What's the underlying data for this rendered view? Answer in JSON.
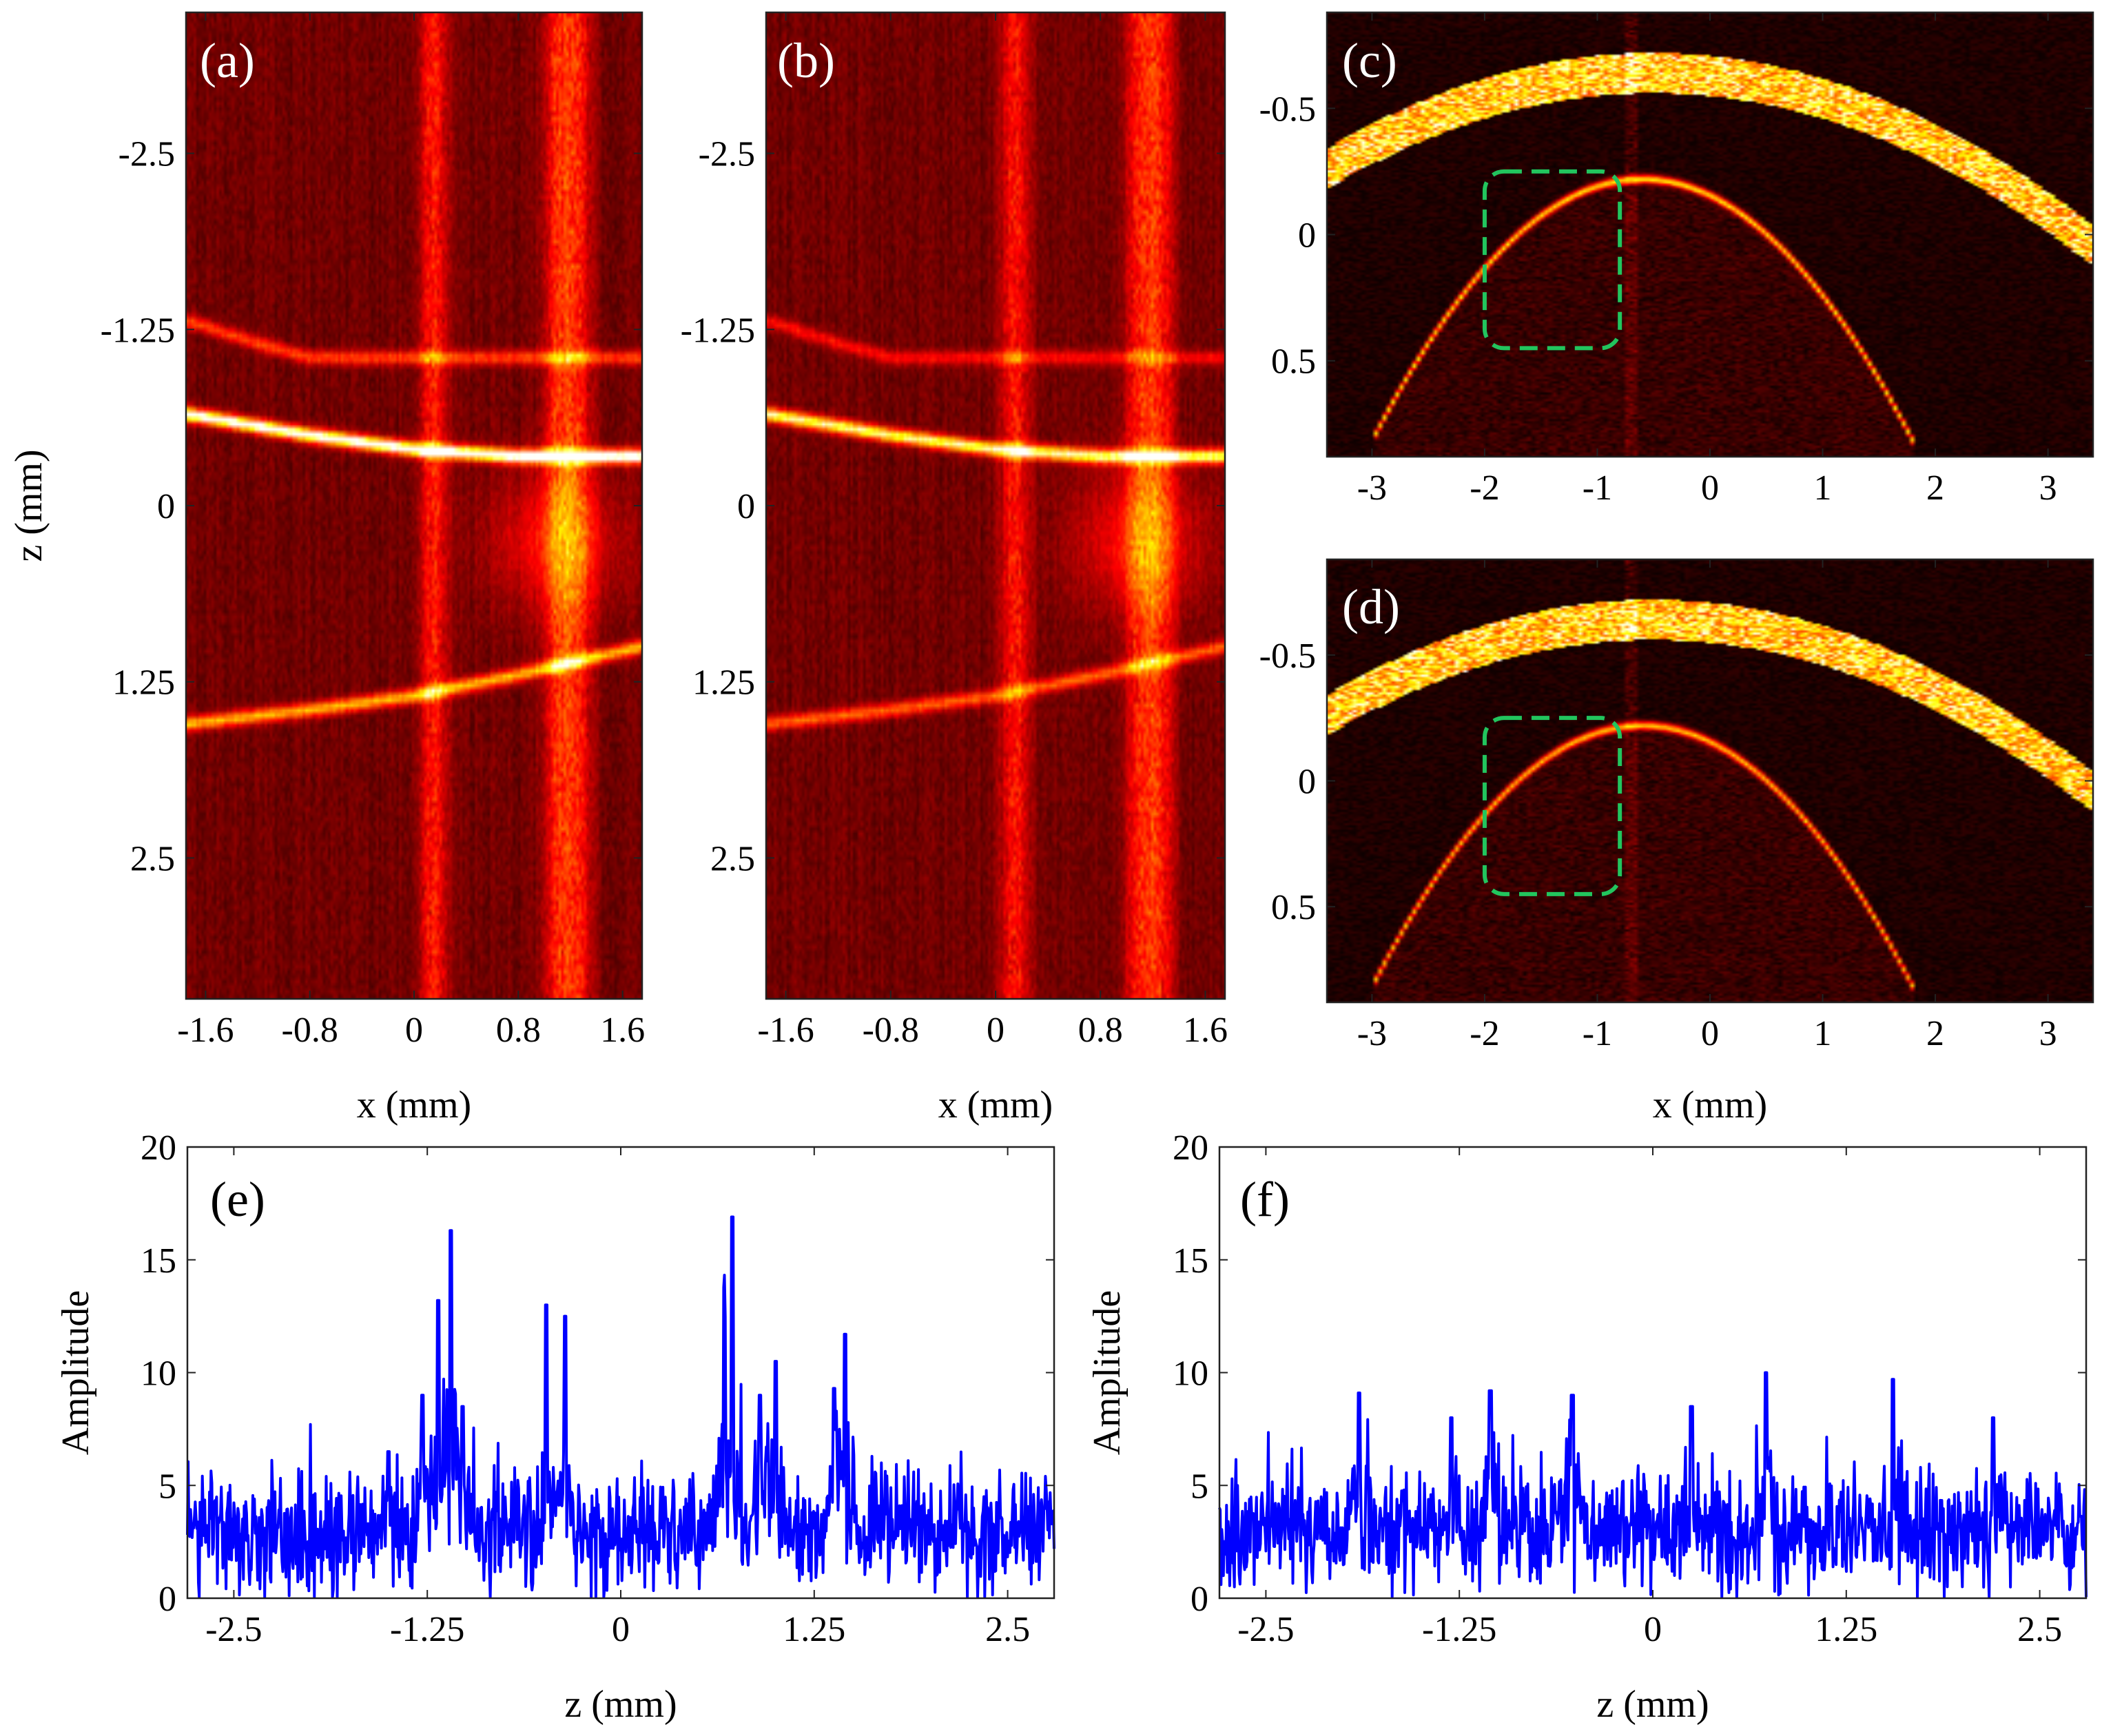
{
  "figure": {
    "panels": {
      "a": {
        "label": "(a)"
      },
      "b": {
        "label": "(b)"
      },
      "c": {
        "label": "(c)"
      },
      "d": {
        "label": "(d)"
      },
      "e": {
        "label": "(e)"
      },
      "f": {
        "label": "(f)"
      }
    },
    "colors": {
      "line": "#0000ff",
      "roi_box": "#22c55e",
      "image_dark": "#150000",
      "image_mid": "#8b1a00",
      "image_bright": "#ffe8a0"
    }
  },
  "chart_data": [
    {
      "type": "heatmap",
      "panel": "(a)",
      "colormap": "hot",
      "xlabel": "x (mm)",
      "ylabel": "z (mm)",
      "xlim": [
        -1.75,
        1.75
      ],
      "ylim": [
        -3.5,
        3.5
      ],
      "y_reversed": true,
      "xticks": [
        -1.6,
        -0.8,
        0,
        0.8,
        1.6
      ],
      "xtick_labels": [
        "-1.6",
        "-0.8",
        "0",
        "0.8",
        "1.6"
      ],
      "yticks": [
        -2.5,
        -1.25,
        0,
        1.25,
        2.5
      ],
      "ytick_labels": [
        "-2.5",
        "-1.25",
        "0",
        "1.25",
        "2.5"
      ],
      "features": {
        "bright_columns_x_mm": [
          0.15,
          1.1,
          1.25
        ],
        "surface_arcs": [
          {
            "x": [
              -1.75,
              -0.8,
              0,
              0.8,
              1.6,
              1.75
            ],
            "z": [
              -0.65,
              -0.5,
              -0.4,
              -0.35,
              -0.35,
              -0.35
            ],
            "intensity": 0.9
          },
          {
            "x": [
              -1.75,
              -0.8,
              0,
              0.8,
              1.75
            ],
            "z": [
              1.55,
              1.45,
              1.35,
              1.2,
              1.0
            ],
            "intensity": 0.55
          },
          {
            "x": [
              -1.7,
              -1.2,
              -0.8
            ],
            "z": [
              -1.3,
              -1.15,
              -1.05
            ],
            "intensity": 0.35
          }
        ]
      }
    },
    {
      "type": "heatmap",
      "panel": "(b)",
      "colormap": "hot",
      "xlabel": "x (mm)",
      "ylabel": "",
      "xlim": [
        -1.75,
        1.75
      ],
      "ylim": [
        -3.5,
        3.5
      ],
      "y_reversed": true,
      "xticks": [
        -1.6,
        -0.8,
        0,
        0.8,
        1.6
      ],
      "xtick_labels": [
        "-1.6",
        "-0.8",
        "0",
        "0.8",
        "1.6"
      ],
      "yticks": [
        -2.5,
        -1.25,
        0,
        1.25,
        2.5
      ],
      "ytick_labels": [
        "-2.5",
        "-1.25",
        "0",
        "1.25",
        "2.5"
      ],
      "features": {
        "bright_columns_x_mm": [
          0.15,
          1.1,
          1.25
        ],
        "surface_arcs": [
          {
            "x": [
              -1.75,
              -0.8,
              0,
              0.8,
              1.6,
              1.75
            ],
            "z": [
              -0.65,
              -0.5,
              -0.4,
              -0.35,
              -0.35,
              -0.35
            ],
            "intensity": 0.75
          },
          {
            "x": [
              -1.75,
              -0.8,
              0,
              0.8,
              1.75
            ],
            "z": [
              1.55,
              1.45,
              1.35,
              1.2,
              1.0
            ],
            "intensity": 0.4
          },
          {
            "x": [
              -1.7,
              -1.2,
              -0.8
            ],
            "z": [
              -1.3,
              -1.15,
              -1.05
            ],
            "intensity": 0.25
          }
        ]
      }
    },
    {
      "type": "heatmap",
      "panel": "(c)",
      "colormap": "hot",
      "xlabel": "",
      "ylabel": "",
      "xlim": [
        -3.4,
        3.4
      ],
      "ylim": [
        -0.88,
        0.88
      ],
      "y_reversed": true,
      "xticks": [
        -3,
        -2,
        -1,
        0,
        1,
        2,
        3
      ],
      "xtick_labels": [
        "-3",
        "-2",
        "-1",
        "0",
        "1",
        "2",
        "3"
      ],
      "yticks": [
        -0.5,
        0,
        0.5
      ],
      "ytick_labels": [
        "-0.5",
        "0",
        "0.5"
      ],
      "features": {
        "cornea_arc": {
          "apex_x": -0.5,
          "apex_z": -0.62,
          "curvature": 0.045,
          "thickness": 0.1,
          "intensity": 1.0
        },
        "lens_arc": {
          "apex_x": -0.6,
          "apex_z": -0.22,
          "curvature": 0.18,
          "x_range": [
            -3.0,
            1.8
          ],
          "intensity": 0.7
        },
        "roi_box": {
          "x": [
            -2.0,
            -0.8
          ],
          "z": [
            -0.25,
            0.45
          ]
        }
      }
    },
    {
      "type": "heatmap",
      "panel": "(d)",
      "colormap": "hot",
      "xlabel": "x (mm)",
      "ylabel": "",
      "xlim": [
        -3.4,
        3.4
      ],
      "ylim": [
        -0.88,
        0.88
      ],
      "y_reversed": true,
      "xticks": [
        -3,
        -2,
        -1,
        0,
        1,
        2,
        3
      ],
      "xtick_labels": [
        "-3",
        "-2",
        "-1",
        "0",
        "1",
        "2",
        "3"
      ],
      "yticks": [
        -0.5,
        0,
        0.5
      ],
      "ytick_labels": [
        "-0.5",
        "0",
        "0.5"
      ],
      "features": {
        "cornea_arc": {
          "apex_x": -0.5,
          "apex_z": -0.62,
          "curvature": 0.045,
          "thickness": 0.1,
          "intensity": 1.0
        },
        "lens_arc": {
          "apex_x": -0.6,
          "apex_z": -0.22,
          "curvature": 0.18,
          "x_range": [
            -3.0,
            1.8
          ],
          "intensity": 0.65
        },
        "roi_box": {
          "x": [
            -2.0,
            -0.8
          ],
          "z": [
            -0.25,
            0.45
          ]
        }
      }
    },
    {
      "type": "line",
      "panel": "(e)",
      "xlabel": "z (mm)",
      "ylabel": "Amplitude",
      "xlim": [
        -2.8,
        2.8
      ],
      "ylim": [
        0,
        20
      ],
      "xticks": [
        -2.5,
        -1.25,
        0,
        1.25,
        2.5
      ],
      "xtick_labels": [
        "-2.5",
        "-1.25",
        "0",
        "1.25",
        "2.5"
      ],
      "yticks": [
        0,
        5,
        10,
        15,
        20
      ],
      "ytick_labels": [
        "0",
        "5",
        "10",
        "15",
        "20"
      ],
      "series": [
        {
          "name": "amplitude",
          "samples": 1100,
          "baseline_mean": 3.0,
          "noise_sd": 1.3
        }
      ],
      "peaks": [
        {
          "z": -1.28,
          "value": 9.0
        },
        {
          "z": -1.18,
          "value": 13.2
        },
        {
          "z": -1.1,
          "value": 16.3
        },
        {
          "z": -1.02,
          "value": 8.5
        },
        {
          "z": -0.48,
          "value": 13.0
        },
        {
          "z": -0.36,
          "value": 12.5
        },
        {
          "z": 0.67,
          "value": 11.0
        },
        {
          "z": 0.72,
          "value": 16.9
        },
        {
          "z": 0.9,
          "value": 9.0
        },
        {
          "z": 1.0,
          "value": 10.5
        },
        {
          "z": 1.45,
          "value": 11.7
        },
        {
          "z": 1.38,
          "value": 9.3
        },
        {
          "z": -1.5,
          "value": 6.5
        }
      ]
    },
    {
      "type": "line",
      "panel": "(f)",
      "xlabel": "z (mm)",
      "ylabel": "Amplitude",
      "xlim": [
        -2.8,
        2.8
      ],
      "ylim": [
        0,
        20
      ],
      "xticks": [
        -2.5,
        -1.25,
        0,
        1.25,
        2.5
      ],
      "xtick_labels": [
        "-2.5",
        "-1.25",
        "0",
        "1.25",
        "2.5"
      ],
      "yticks": [
        0,
        5,
        10,
        15,
        20
      ],
      "ytick_labels": [
        "0",
        "5",
        "10",
        "15",
        "20"
      ],
      "series": [
        {
          "name": "amplitude",
          "samples": 1100,
          "baseline_mean": 3.0,
          "noise_sd": 1.3
        }
      ],
      "peaks": [
        {
          "z": -1.9,
          "value": 9.1
        },
        {
          "z": -1.3,
          "value": 8.0
        },
        {
          "z": -1.05,
          "value": 9.2
        },
        {
          "z": -0.52,
          "value": 9.0
        },
        {
          "z": 0.25,
          "value": 8.5
        },
        {
          "z": 0.73,
          "value": 10.0
        },
        {
          "z": 1.55,
          "value": 9.7
        },
        {
          "z": 2.2,
          "value": 8.0
        }
      ]
    }
  ]
}
